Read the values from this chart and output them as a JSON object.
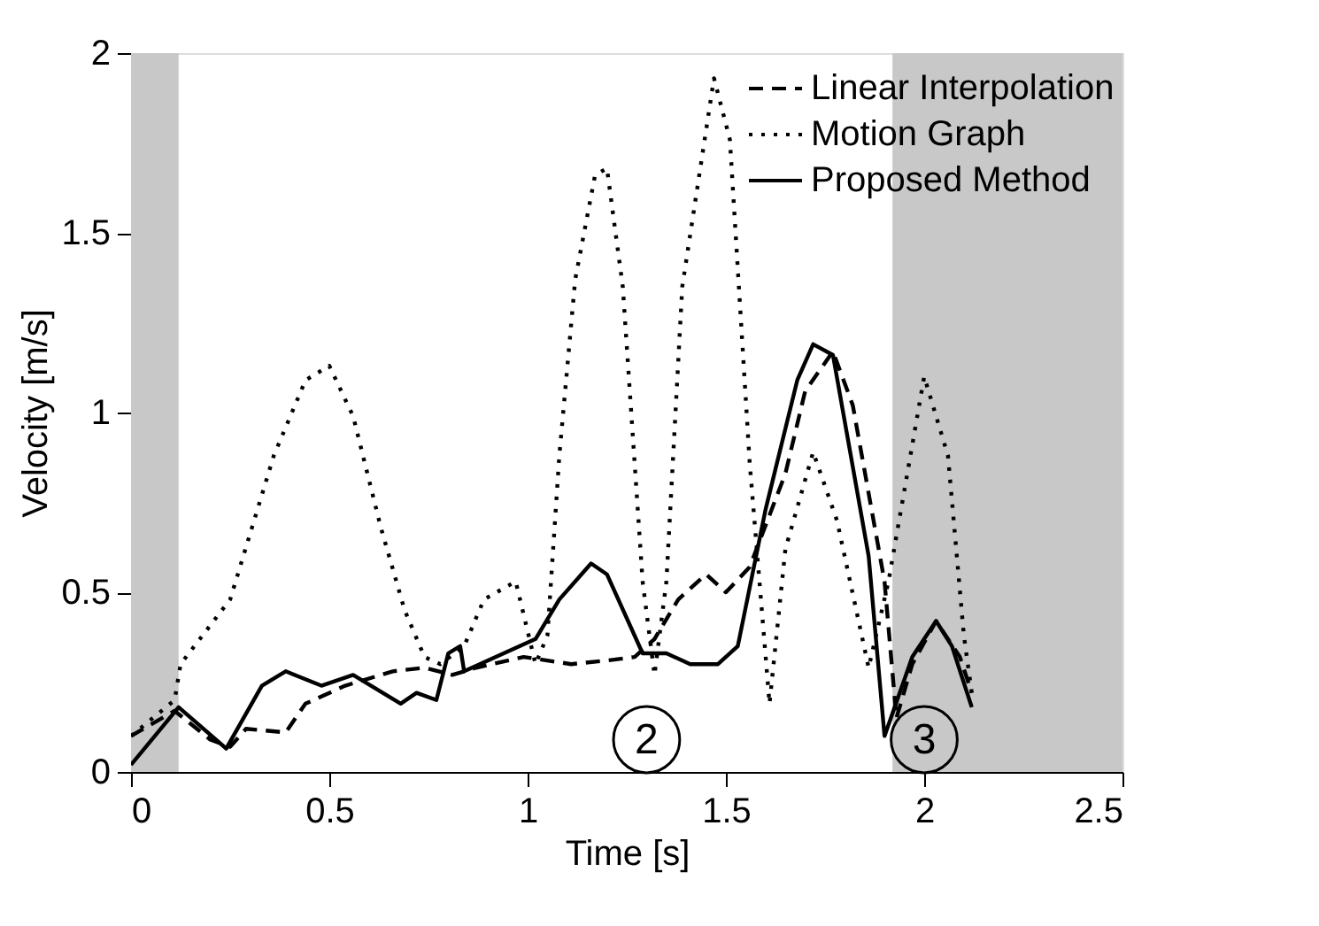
{
  "chart_data": {
    "type": "line",
    "xlabel": "Time [s]",
    "ylabel": "Velocity [m/s]",
    "xlim": [
      0,
      2.5
    ],
    "ylim": [
      0,
      2
    ],
    "xticks": [
      0,
      0.5,
      1,
      1.5,
      2,
      2.5
    ],
    "yticks": [
      0,
      0.5,
      1,
      1.5,
      2
    ],
    "grid": false,
    "legend": "top right",
    "bands": [
      {
        "axis": "x",
        "from": 0,
        "to": 0.12,
        "color": "#c8c8c8"
      },
      {
        "axis": "x",
        "from": 1.92,
        "to": 2.5,
        "color": "#c8c8c8"
      }
    ],
    "annotations": [
      {
        "text": "2",
        "x": 1.3,
        "y": 0.09
      },
      {
        "text": "3",
        "x": 2.0,
        "y": 0.09
      }
    ],
    "series": [
      {
        "name": "Linear Interpolation",
        "color": "#000000",
        "line_style": "dashed",
        "x": [
          0,
          0.11,
          0.2,
          0.25,
          0.29,
          0.39,
          0.44,
          0.54,
          0.66,
          0.74,
          0.81,
          0.87,
          0.99,
          1.11,
          1.2,
          1.27,
          1.32,
          1.38,
          1.45,
          1.5,
          1.56,
          1.65,
          1.7,
          1.77,
          1.82,
          1.9,
          1.93,
          1.97,
          2.03,
          2.09,
          2.12
        ],
        "values": [
          0.1,
          0.17,
          0.09,
          0.07,
          0.12,
          0.11,
          0.19,
          0.24,
          0.28,
          0.29,
          0.27,
          0.29,
          0.32,
          0.3,
          0.31,
          0.32,
          0.37,
          0.48,
          0.55,
          0.5,
          0.57,
          0.83,
          1.06,
          1.17,
          1.02,
          0.53,
          0.15,
          0.3,
          0.42,
          0.32,
          0.22
        ]
      },
      {
        "name": "Motion Graph",
        "color": "#000000",
        "line_style": "dotted",
        "x": [
          0,
          0.11,
          0.125,
          0.25,
          0.36,
          0.44,
          0.5,
          0.56,
          0.63,
          0.69,
          0.74,
          0.78,
          0.84,
          0.89,
          0.97,
          1.02,
          1.05,
          1.08,
          1.12,
          1.17,
          1.2,
          1.24,
          1.29,
          1.32,
          1.35,
          1.39,
          1.47,
          1.51,
          1.56,
          1.61,
          1.65,
          1.72,
          1.78,
          1.86,
          1.91,
          2.0,
          2.06,
          2.1,
          2.12
        ],
        "values": [
          0.1,
          0.2,
          0.3,
          0.48,
          0.88,
          1.09,
          1.13,
          0.99,
          0.68,
          0.45,
          0.32,
          0.3,
          0.35,
          0.48,
          0.53,
          0.3,
          0.38,
          0.88,
          1.37,
          1.66,
          1.68,
          1.35,
          0.53,
          0.27,
          0.53,
          1.35,
          1.93,
          1.76,
          0.86,
          0.19,
          0.62,
          0.89,
          0.7,
          0.29,
          0.53,
          1.1,
          0.88,
          0.38,
          0.22
        ]
      },
      {
        "name": "Proposed Method",
        "color": "#000000",
        "line_style": "solid",
        "x": [
          0,
          0.12,
          0.24,
          0.33,
          0.39,
          0.48,
          0.56,
          0.68,
          0.72,
          0.77,
          0.8,
          0.83,
          0.84,
          0.92,
          1.02,
          1.08,
          1.16,
          1.2,
          1.29,
          1.35,
          1.41,
          1.48,
          1.53,
          1.6,
          1.68,
          1.72,
          1.77,
          1.86,
          1.9,
          1.97,
          2.03,
          2.07,
          2.12
        ],
        "values": [
          0.02,
          0.18,
          0.065,
          0.24,
          0.28,
          0.24,
          0.27,
          0.19,
          0.22,
          0.2,
          0.33,
          0.35,
          0.28,
          0.32,
          0.37,
          0.48,
          0.58,
          0.55,
          0.33,
          0.33,
          0.3,
          0.3,
          0.35,
          0.73,
          1.09,
          1.19,
          1.16,
          0.6,
          0.1,
          0.32,
          0.42,
          0.35,
          0.18
        ]
      }
    ]
  }
}
